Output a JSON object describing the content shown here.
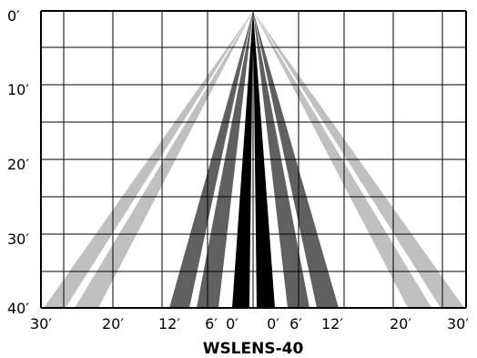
{
  "title": "WSLENS-40",
  "y_axis_labels": [
    "0′",
    "10′",
    "20′",
    "30′",
    "40′"
  ],
  "x_axis_labels": [
    "30′",
    "20′",
    "12′",
    "6′",
    "0′",
    "0′",
    "6′",
    "12′",
    "20′",
    "30′"
  ],
  "colors": {
    "outer_beams": "#c0c0c0",
    "middle_beams": "#606060",
    "center_beams": "#000000",
    "grid": "#000000"
  },
  "beam_groups": [
    {
      "name": "outer",
      "color_key": "outer_beams",
      "beams": 4
    },
    {
      "name": "middle",
      "color_key": "middle_beams",
      "beams": 4
    },
    {
      "name": "center",
      "color_key": "center_beams",
      "beams": 2
    }
  ]
}
